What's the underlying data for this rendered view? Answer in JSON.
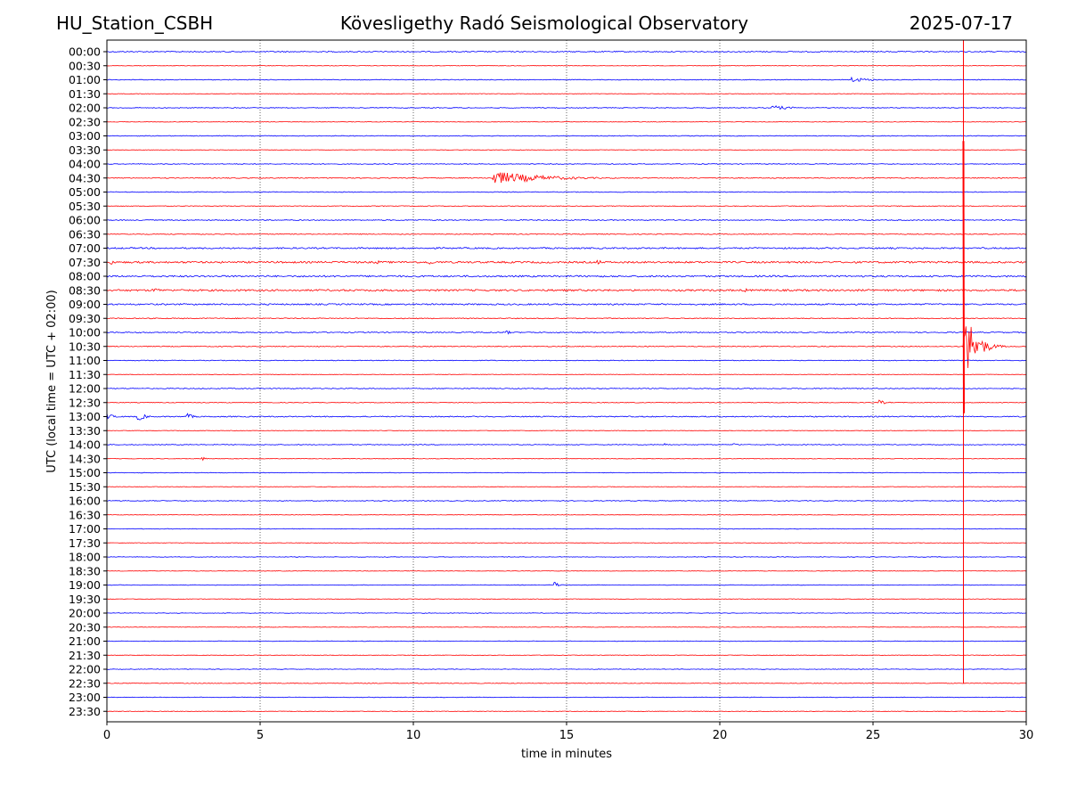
{
  "header": {
    "station": "HU_Station_CSBH",
    "title": "Kövesligethy Radó Seismological Observatory",
    "date": "2025-07-17"
  },
  "chart_data": {
    "type": "line",
    "title": "Kövesligethy Radó Seismological Observatory",
    "xlabel": "time in minutes",
    "ylabel": "UTC (local time = UTC + 02:00)",
    "xlim": [
      0,
      30
    ],
    "x_ticks": [
      0,
      5,
      10,
      15,
      20,
      25,
      30
    ],
    "grid": "vertical dotted lines at x = 5, 10, 15, 20, 25",
    "trace_colors": [
      "#0000ff",
      "#ff0000"
    ],
    "row_labels": [
      "00:00",
      "00:30",
      "01:00",
      "01:30",
      "02:00",
      "02:30",
      "03:00",
      "03:30",
      "04:00",
      "04:30",
      "05:00",
      "05:30",
      "06:00",
      "06:30",
      "07:00",
      "07:30",
      "08:00",
      "08:30",
      "09:00",
      "09:30",
      "10:00",
      "10:30",
      "11:00",
      "11:30",
      "12:00",
      "12:30",
      "13:00",
      "13:30",
      "14:00",
      "14:30",
      "15:00",
      "15:30",
      "16:00",
      "16:30",
      "17:00",
      "17:30",
      "18:00",
      "18:30",
      "19:00",
      "19:30",
      "20:00",
      "20:30",
      "21:00",
      "21:30",
      "22:00",
      "22:30",
      "23:00",
      "23:30"
    ],
    "row_noise": [
      0.6,
      0.3,
      0.4,
      0.3,
      0.4,
      0.3,
      0.4,
      0.3,
      0.4,
      0.5,
      0.4,
      0.4,
      0.5,
      0.5,
      0.8,
      1.0,
      0.9,
      1.0,
      0.8,
      0.5,
      0.6,
      0.5,
      0.4,
      0.3,
      0.5,
      0.4,
      0.6,
      0.3,
      0.4,
      0.3,
      0.3,
      0.3,
      0.4,
      0.3,
      0.3,
      0.3,
      0.3,
      0.3,
      0.3,
      0.3,
      0.3,
      0.3,
      0.3,
      0.3,
      0.3,
      0.4,
      0.3,
      0.3
    ],
    "events": [
      {
        "row": "01:00",
        "start_min": 24.3,
        "end_min": 26,
        "amp": 3
      },
      {
        "row": "02:00",
        "start_min": 21.7,
        "end_min": 23.5,
        "amp": 3
      },
      {
        "row": "04:30",
        "start_min": 12.6,
        "end_min": 17,
        "amp": 8
      },
      {
        "row": "07:30",
        "start_min": 0.1,
        "end_min": 0.5,
        "amp": 4
      },
      {
        "row": "07:30",
        "start_min": 8.8,
        "end_min": 9.2,
        "amp": 3
      },
      {
        "row": "07:30",
        "start_min": 10.5,
        "end_min": 10.9,
        "amp": 4
      },
      {
        "row": "07:30",
        "start_min": 16,
        "end_min": 16.7,
        "amp": 3
      },
      {
        "row": "08:30",
        "start_min": 1.5,
        "end_min": 2.5,
        "amp": 3
      },
      {
        "row": "08:30",
        "start_min": 20.8,
        "end_min": 21.2,
        "amp": 3
      },
      {
        "row": "10:00",
        "start_min": 13,
        "end_min": 13.5,
        "amp": 3
      },
      {
        "row": "12:30",
        "start_min": 25.2,
        "end_min": 25.8,
        "amp": 3
      },
      {
        "row": "13:00",
        "start_min": 0,
        "end_min": 0.6,
        "amp": 4
      },
      {
        "row": "13:00",
        "start_min": 1,
        "end_min": 1.8,
        "amp": 5
      },
      {
        "row": "13:00",
        "start_min": 2.6,
        "end_min": 3.2,
        "amp": 4
      },
      {
        "row": "14:00",
        "start_min": 18.2,
        "end_min": 18.6,
        "amp": 2
      },
      {
        "row": "14:00",
        "start_min": 20.4,
        "end_min": 21.1,
        "amp": 2
      },
      {
        "row": "14:30",
        "start_min": 3.1,
        "end_min": 3.4,
        "amp": 5
      },
      {
        "row": "19:00",
        "start_min": 14.6,
        "end_min": 15,
        "amp": 4
      }
    ],
    "large_event": {
      "row": "10:30",
      "start_min": 27.95,
      "amp": 50,
      "decay_min": 1.2,
      "vertical_trace_from_row": "03:30",
      "vertical_trace_to_row": "22:30"
    }
  }
}
